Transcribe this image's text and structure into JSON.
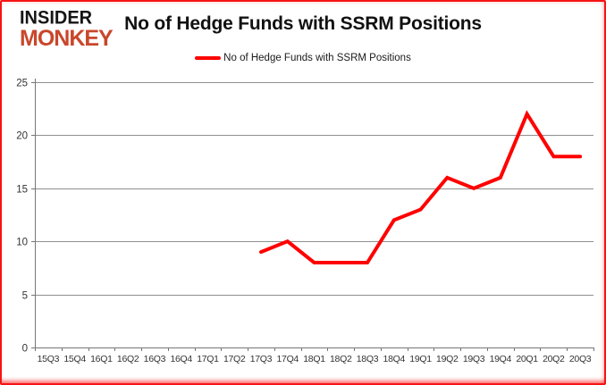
{
  "header": {
    "logo_line1": "INSIDER",
    "logo_line2": "MONKEY",
    "title": "No of Hedge Funds with SSRM Positions"
  },
  "legend": {
    "label": "No of Hedge Funds with SSRM Positions"
  },
  "colors": {
    "line": "#ff0000",
    "border": "#f61414",
    "logo_accent": "#c9472b",
    "gridline": "#8f8f8f",
    "axis": "#767676",
    "tick_label": "#333333"
  },
  "chart_data": {
    "type": "line",
    "title": "No of Hedge Funds with SSRM Positions",
    "categories": [
      "15Q3",
      "15Q4",
      "16Q1",
      "16Q2",
      "16Q3",
      "16Q4",
      "17Q1",
      "17Q2",
      "17Q3",
      "17Q4",
      "18Q1",
      "18Q2",
      "18Q3",
      "18Q4",
      "19Q1",
      "19Q2",
      "19Q3",
      "19Q4",
      "20Q1",
      "20Q2",
      "20Q3"
    ],
    "series": [
      {
        "name": "No of Hedge Funds with SSRM Positions",
        "color": "#ff0000",
        "values": [
          null,
          null,
          null,
          null,
          null,
          null,
          null,
          null,
          9,
          10,
          8,
          8,
          8,
          12,
          13,
          16,
          15,
          16,
          22,
          18,
          18
        ]
      }
    ],
    "xlabel": "",
    "ylabel": "",
    "ylim": [
      0,
      25
    ],
    "yticks": [
      0,
      5,
      10,
      15,
      20,
      25
    ],
    "grid": true,
    "legend_position": "top-center"
  }
}
